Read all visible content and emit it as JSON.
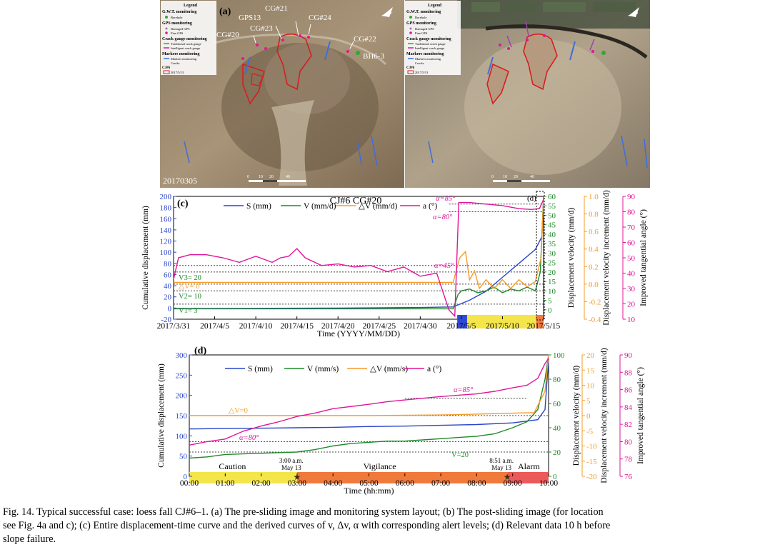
{
  "panel_a": {
    "label": "(a)",
    "date": "20170305",
    "legend": {
      "title": "Legend",
      "gwt": "G.W.T. monitoring",
      "borehole": "Borehole",
      "gps": "GPS monitoring",
      "damaged_gps": "Damaged GPS",
      "fine_gps": "Fine GPS",
      "crack": "Crack gauge monitoring",
      "traditional": "Traditional crack gauge",
      "intelligent": "Intelligent crack gauge",
      "markers": "Markers monitoring",
      "markers_item": "Markers monitoring",
      "cracks": "Cracks",
      "cj": "CJ#6",
      "cj_date": "2017/5/13"
    },
    "labels": [
      "GPS13",
      "CG#21",
      "CG#24",
      "CG#20",
      "CG#23",
      "CG#22",
      "BH6-3"
    ],
    "scale": [
      "0",
      "10",
      "20",
      "40"
    ]
  },
  "panel_b": {
    "legend": {
      "title": "Legend",
      "gwt": "G.W.T. monitoring",
      "borehole": "Borehole",
      "gps": "GPS monitoring",
      "damaged_gps": "Damaged GPS",
      "fine_gps": "Fine GPS",
      "crack": "Crack gauge monitoring",
      "traditional": "Traditional crack gauge",
      "intelligent": "Intelligent crack gauge",
      "markers": "Markers monitoring",
      "markers_item": "Markers monitoring",
      "cracks": "Cracks",
      "cj": "CJ#6",
      "cj_date": "2017/5/13"
    },
    "scale": [
      "0",
      "10",
      "20",
      "40"
    ]
  },
  "chart_data": [
    {
      "type": "line",
      "panel": "(c)",
      "title": "CJ#6 CG#20",
      "xlabel": "Time (YYYY/MM/DD)",
      "x_ticks": [
        "2017/3/31",
        "2017/4/5",
        "2017/4/10",
        "2017/4/15",
        "2017/4/20",
        "2017/4/25",
        "2017/4/30",
        "2017/5/5",
        "2017/5/10",
        "2017/5/15"
      ],
      "x_range_days": [
        0,
        45
      ],
      "axes": {
        "S": {
          "label": "Cumulative displacement (mm)",
          "range": [
            -20,
            200
          ],
          "ticks": [
            -20,
            0,
            20,
            40,
            60,
            80,
            100,
            120,
            140,
            160,
            180,
            200
          ]
        },
        "V": {
          "label": "Displacement velocity (mm/d)",
          "range": [
            -5,
            60
          ],
          "ticks": [
            0,
            5,
            10,
            15,
            20,
            25,
            30,
            35,
            40,
            45,
            50,
            55,
            60
          ]
        },
        "dV": {
          "label": "Displacement velocity increment (mm/d)",
          "range": [
            -0.4,
            1.0
          ],
          "ticks": [
            "-0.4",
            "-0.2",
            "0.0",
            "0.2",
            "0.4",
            "0.6",
            "0.8",
            "1.0"
          ]
        },
        "a": {
          "label": "Improved tangential angle (°)",
          "range": [
            10,
            90
          ],
          "ticks": [
            10,
            20,
            30,
            40,
            50,
            60,
            70,
            80,
            90
          ]
        }
      },
      "legend": [
        "S (mm)",
        "V (mm/d)",
        "△V (mm/d)",
        "a (°)"
      ],
      "annotations": [
        "α=85°",
        "α=80°",
        "α=45°",
        "V3= 20",
        "△V= 0",
        "V2= 10",
        "V1= 3",
        "(d)"
      ],
      "series": [
        {
          "name": "S (mm)",
          "axis": "S",
          "color": "#2a46c8",
          "points": [
            [
              0,
              -1
            ],
            [
              10,
              -0.5
            ],
            [
              20,
              0
            ],
            [
              30,
              1
            ],
            [
              34,
              2
            ],
            [
              34.5,
              5
            ],
            [
              36,
              14
            ],
            [
              38,
              30
            ],
            [
              40,
              55
            ],
            [
              42,
              80
            ],
            [
              44,
              105
            ],
            [
              44.8,
              128
            ],
            [
              45,
              195
            ]
          ]
        },
        {
          "name": "V (mm/d)",
          "axis": "V",
          "color": "#1f8a2a",
          "points": [
            [
              0,
              0.5
            ],
            [
              10,
              0.5
            ],
            [
              20,
              0.5
            ],
            [
              30,
              0.5
            ],
            [
              34,
              0.5
            ],
            [
              34.6,
              8
            ],
            [
              35,
              10
            ],
            [
              36,
              11
            ],
            [
              37,
              9
            ],
            [
              38,
              10
            ],
            [
              39,
              12
            ],
            [
              40,
              9
            ],
            [
              41,
              11
            ],
            [
              42,
              10
            ],
            [
              43,
              12
            ],
            [
              44,
              10
            ],
            [
              44.6,
              20
            ],
            [
              45,
              60
            ]
          ]
        },
        {
          "name": "△V (mm/d)",
          "axis": "dV",
          "color": "#f39c28",
          "points": [
            [
              0,
              0.02
            ],
            [
              34,
              0.02
            ],
            [
              34.8,
              0.3
            ],
            [
              35.5,
              0.37
            ],
            [
              36,
              0.05
            ],
            [
              36.6,
              0.15
            ],
            [
              37.2,
              -0.05
            ],
            [
              38,
              0.05
            ],
            [
              39,
              -0.05
            ],
            [
              40,
              0.05
            ],
            [
              41,
              -0.05
            ],
            [
              42,
              0.05
            ],
            [
              43,
              -0.03
            ],
            [
              44,
              0.03
            ],
            [
              44.7,
              0.3
            ],
            [
              45,
              0.98
            ]
          ]
        },
        {
          "name": "a (°)",
          "axis": "a",
          "color": "#e0169b",
          "points": [
            [
              0,
              36
            ],
            [
              0.6,
              50
            ],
            [
              2,
              52
            ],
            [
              4,
              52
            ],
            [
              6,
              50
            ],
            [
              8,
              47
            ],
            [
              10,
              51
            ],
            [
              12,
              47
            ],
            [
              13,
              50
            ],
            [
              14,
              51
            ],
            [
              15,
              56
            ],
            [
              16,
              50
            ],
            [
              18,
              45
            ],
            [
              20,
              46
            ],
            [
              22,
              44
            ],
            [
              24,
              45
            ],
            [
              26,
              41
            ],
            [
              28,
              44
            ],
            [
              30,
              38
            ],
            [
              32,
              40
            ],
            [
              33.5,
              16
            ],
            [
              34.2,
              12
            ],
            [
              34.7,
              86
            ],
            [
              36,
              86
            ],
            [
              38,
              85
            ],
            [
              40,
              84
            ],
            [
              42,
              82
            ],
            [
              43.5,
              81.5
            ],
            [
              44.5,
              82
            ],
            [
              45,
              88
            ]
          ]
        }
      ],
      "alert_bands": [
        {
          "from": 34.5,
          "to": 35.7,
          "color": "#3048d8"
        },
        {
          "from": 35.7,
          "to": 44.1,
          "color": "#f4e64a"
        },
        {
          "from": 44.1,
          "to": 45,
          "color": "#f07a3c"
        }
      ]
    },
    {
      "type": "line",
      "panel": "(d)",
      "xlabel": "Time (hh:mm)",
      "x_ticks": [
        "00:00",
        "01:00",
        "02:00",
        "03:00",
        "04:00",
        "05:00",
        "06:00",
        "07:00",
        "08:00",
        "09:00",
        "10:00"
      ],
      "x_range_hours": [
        0,
        10
      ],
      "axes": {
        "S": {
          "label": "Cumulative displacement (mm)",
          "range": [
            0,
            300
          ],
          "ticks": [
            0,
            50,
            100,
            150,
            200,
            250,
            300
          ]
        },
        "V": {
          "label": "Displacement velocity (mm/d)",
          "range": [
            0,
            100
          ],
          "ticks": [
            0,
            20,
            40,
            60,
            80,
            100
          ]
        },
        "dV": {
          "label": "Displacement velocity increment (mm/d)",
          "range": [
            -20,
            20
          ],
          "ticks": [
            -20,
            -15,
            -10,
            -5,
            0,
            5,
            10,
            15,
            20
          ]
        },
        "a": {
          "label": "Improved tangential angle (°)",
          "range": [
            76,
            90
          ],
          "ticks": [
            76,
            78,
            80,
            82,
            84,
            86,
            88,
            90
          ]
        }
      },
      "legend": [
        "S (mm)",
        "V (mm/s)",
        "△V (mm/s)",
        "a (°)"
      ],
      "annotations": [
        "α=85°",
        "α=80°",
        "△V=0",
        "V=20"
      ],
      "phases": [
        "Caution",
        "Vigilance",
        "Alarm"
      ],
      "events": [
        {
          "label": "3:00 a.m.",
          "sub": "May 13",
          "x": 3.0
        },
        {
          "label": "8:51 a.m.",
          "sub": "May 13",
          "x": 8.85
        }
      ],
      "series": [
        {
          "name": "S (mm)",
          "axis": "S",
          "color": "#2a46c8",
          "points": [
            [
              0,
              117
            ],
            [
              1,
              118
            ],
            [
              2,
              119
            ],
            [
              3,
              120
            ],
            [
              4,
              121
            ],
            [
              5,
              123
            ],
            [
              6,
              124
            ],
            [
              7,
              126
            ],
            [
              8,
              128
            ],
            [
              9,
              132
            ],
            [
              9.7,
              140
            ],
            [
              9.9,
              165
            ],
            [
              10,
              290
            ]
          ]
        },
        {
          "name": "V (mm/s)",
          "axis": "V",
          "color": "#1f8a2a",
          "points": [
            [
              0,
              15
            ],
            [
              0.5,
              16
            ],
            [
              1,
              18
            ],
            [
              2,
              19
            ],
            [
              3,
              20
            ],
            [
              3.5,
              22
            ],
            [
              4,
              25
            ],
            [
              4.5,
              27
            ],
            [
              5,
              28
            ],
            [
              5.5,
              29
            ],
            [
              6,
              29
            ],
            [
              6.5,
              30
            ],
            [
              7,
              31
            ],
            [
              7.5,
              32
            ],
            [
              8,
              33
            ],
            [
              8.5,
              35
            ],
            [
              9,
              40
            ],
            [
              9.4,
              45
            ],
            [
              9.7,
              55
            ],
            [
              9.9,
              80
            ],
            [
              10,
              100
            ]
          ]
        },
        {
          "name": "△V (mm/s)",
          "axis": "dV",
          "color": "#f39c28",
          "points": [
            [
              0,
              0
            ],
            [
              3,
              0
            ],
            [
              5,
              0
            ],
            [
              7,
              0.2
            ],
            [
              8,
              0.5
            ],
            [
              9,
              0.8
            ],
            [
              9.6,
              1
            ],
            [
              9.9,
              8
            ],
            [
              10,
              20
            ]
          ]
        },
        {
          "name": "a (°)",
          "axis": "a",
          "color": "#e0169b",
          "points": [
            [
              0,
              79.6
            ],
            [
              0.5,
              80
            ],
            [
              1,
              80.3
            ],
            [
              1.5,
              81.2
            ],
            [
              2,
              81.8
            ],
            [
              2.5,
              82.3
            ],
            [
              3,
              82.9
            ],
            [
              3.5,
              83.3
            ],
            [
              4,
              83.8
            ],
            [
              5,
              84.3
            ],
            [
              5.5,
              84.6
            ],
            [
              6,
              84.8
            ],
            [
              7,
              85.2
            ],
            [
              8,
              85.5
            ],
            [
              8.5,
              85.8
            ],
            [
              9,
              86.2
            ],
            [
              9.4,
              86.5
            ],
            [
              9.7,
              87.3
            ],
            [
              9.9,
              89
            ],
            [
              10,
              89.6
            ]
          ]
        }
      ],
      "alert_bands": [
        {
          "from": 0,
          "to": 3,
          "color": "#f4e64a"
        },
        {
          "from": 3,
          "to": 8.85,
          "color": "#f07a3c"
        },
        {
          "from": 8.85,
          "to": 10,
          "color": "#ea5a5a"
        }
      ]
    }
  ],
  "caption": {
    "line1": "Fig. 14. Typical successful case: loess fall CJ#6–1. (a) The pre-sliding image and monitoring system layout; (b) The post-sliding image (for location",
    "line2": "see Fig. 4a and c); (c) Entire displacement-time curve and the derived curves of v, Δv, α with corresponding alert levels; (d) Relevant data 10 h before",
    "line3": "slope failure."
  }
}
